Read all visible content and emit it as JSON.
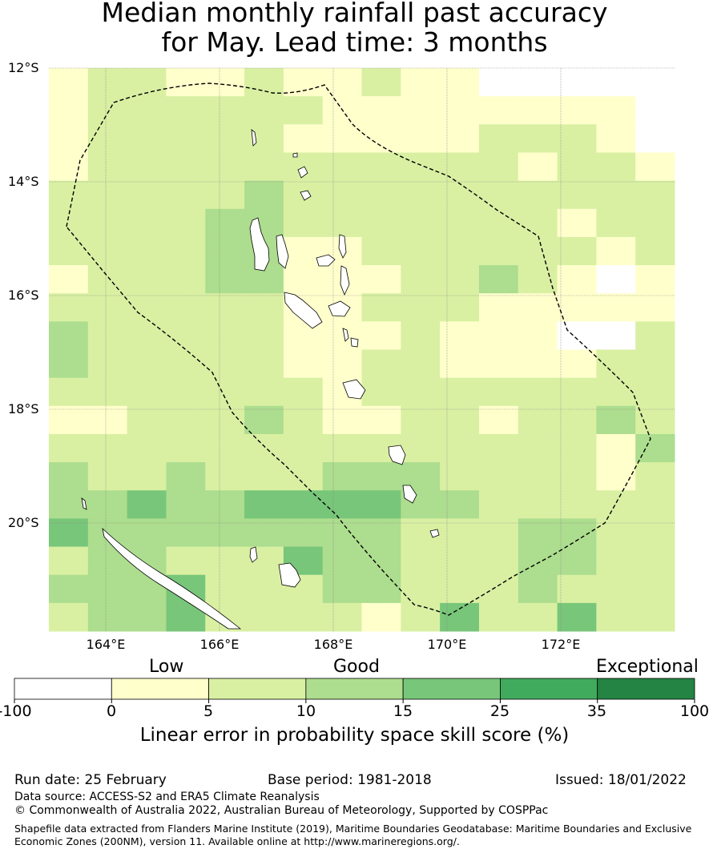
{
  "title_line1": "Median monthly rainfall past accuracy",
  "title_line2": "for May. Lead time: 3 months",
  "axes": {
    "lat_labels": [
      "12°S",
      "14°S",
      "16°S",
      "18°S",
      "20°S"
    ],
    "lon_labels": [
      "164°E",
      "166°E",
      "168°E",
      "170°E",
      "172°E"
    ]
  },
  "legend": {
    "categories": [
      "Low",
      "Good",
      "Exceptional"
    ],
    "ticks": [
      "-100",
      "0",
      "5",
      "10",
      "15",
      "25",
      "35",
      "100"
    ],
    "colors": [
      "#ffffff",
      "#ffffcc",
      "#d9f0a3",
      "#addd8e",
      "#78c679",
      "#41ab5d",
      "#238443"
    ],
    "title": "Linear error in probability space skill score (%)"
  },
  "grid_colors": {
    "0": "#ffffff",
    "1": "#ffffcc",
    "2": "#d9f0a3",
    "3": "#addd8e",
    "4": "#78c679"
  },
  "grid_rows": [
    "1221121121100000",
    "1222222111111110",
    "1222221111122210",
    "1222222222221221",
    "2222232222222222",
    "2222332222222122",
    "2222331122222212",
    "1222331112232101",
    "2222221122211111",
    "3222221112111002",
    "3222221122111122",
    "2222222122222222",
    "1122232112212232",
    "2222222222222213",
    "3223222333222212",
    "3343344443322222",
    "4333333332223322",
    "2332224332223322",
    "3334222332223222",
    "2334222212422422"
  ],
  "footer": {
    "run_date": "Run date: 25 February",
    "base_period": "Base period: 1981-2018",
    "issued": "Issued: 18/01/2022",
    "data_source": "Data source: ACCESS-S2 and ERA5 Climate Reanalysis",
    "copyright": "© Commonwealth of Australia 2022, Australian Bureau of Meteorology, Supported by COSPPac",
    "shapefile_line1": "Shapefile data extracted from Flanders Marine Institute (2019), Maritime Boundaries Geodatabase: Maritime Boundaries and Exclusive",
    "shapefile_line2": "Economic Zones (200NM), version 11. Available online at http://www.marineregions.org/."
  }
}
